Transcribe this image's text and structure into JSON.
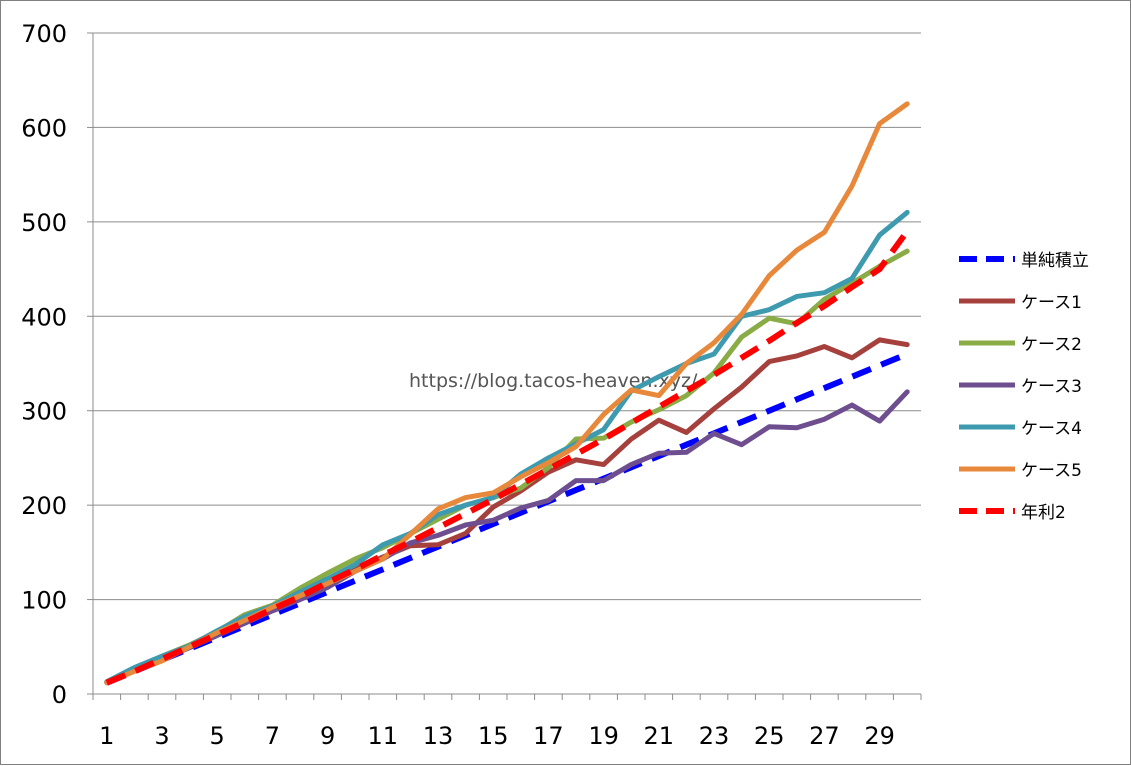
{
  "chart_data": {
    "type": "line",
    "x": [
      1,
      2,
      3,
      4,
      5,
      6,
      7,
      8,
      9,
      10,
      11,
      12,
      13,
      14,
      15,
      16,
      17,
      18,
      19,
      20,
      21,
      22,
      23,
      24,
      25,
      26,
      27,
      28,
      29,
      30
    ],
    "xtick_labels": [
      "1",
      "3",
      "5",
      "7",
      "9",
      "11",
      "13",
      "15",
      "17",
      "19",
      "21",
      "23",
      "25",
      "27",
      "29"
    ],
    "xtick_values": [
      1,
      3,
      5,
      7,
      9,
      11,
      13,
      15,
      17,
      19,
      21,
      23,
      25,
      27,
      29
    ],
    "ylim": [
      0,
      700
    ],
    "yticks": [
      0,
      100,
      200,
      300,
      400,
      500,
      600,
      700
    ],
    "ytick_labels": [
      "0",
      "100",
      "200",
      "300",
      "400",
      "500",
      "600",
      "700"
    ],
    "grid": "horizontal",
    "legend": "right",
    "watermark": "https://blog.tacos-heaven.xyz/",
    "series": [
      {
        "name": "単純積立",
        "color": "#0000ff",
        "dash": true,
        "values": [
          12,
          24,
          36,
          48,
          60,
          72,
          84,
          96,
          108,
          120,
          132,
          144,
          156,
          168,
          180,
          192,
          204,
          216,
          228,
          240,
          252,
          264,
          276,
          288,
          300,
          312,
          324,
          336,
          348,
          360
        ]
      },
      {
        "name": "ケース1",
        "color": "#a5403c",
        "dash": false,
        "values": [
          12,
          26,
          38,
          51,
          63,
          78,
          90,
          105,
          117,
          132,
          145,
          157,
          158,
          170,
          198,
          215,
          235,
          248,
          243,
          270,
          290,
          277,
          302,
          325,
          352,
          358,
          368,
          356,
          375,
          370
        ]
      },
      {
        "name": "ケース2",
        "color": "#8aac46",
        "dash": false,
        "values": [
          13,
          27,
          40,
          52,
          66,
          84,
          94,
          112,
          128,
          143,
          155,
          170,
          185,
          200,
          208,
          218,
          240,
          270,
          271,
          288,
          301,
          316,
          340,
          378,
          398,
          392,
          418,
          435,
          453,
          469
        ]
      },
      {
        "name": "ケース3",
        "color": "#6e4e8e",
        "dash": false,
        "values": [
          12,
          25,
          37,
          49,
          62,
          75,
          88,
          100,
          113,
          130,
          143,
          160,
          168,
          179,
          184,
          197,
          205,
          226,
          226,
          243,
          255,
          256,
          276,
          264,
          283,
          282,
          291,
          306,
          289,
          320
        ]
      },
      {
        "name": "ケース4",
        "color": "#3d9aaf",
        "dash": false,
        "values": [
          13,
          28,
          40,
          51,
          67,
          82,
          93,
          108,
          122,
          137,
          158,
          170,
          190,
          200,
          208,
          233,
          250,
          265,
          280,
          321,
          336,
          350,
          360,
          400,
          407,
          421,
          425,
          440,
          486,
          510
        ]
      },
      {
        "name": "ケース5",
        "color": "#e7883a",
        "dash": false,
        "values": [
          12,
          24,
          35,
          50,
          65,
          78,
          92,
          104,
          117,
          130,
          143,
          169,
          196,
          208,
          213,
          230,
          245,
          262,
          296,
          322,
          316,
          350,
          372,
          402,
          443,
          470,
          489,
          538,
          604,
          625
        ]
      },
      {
        "name": "年利2",
        "color": "#ff0000",
        "dash": true,
        "values": [
          12,
          24,
          37,
          50,
          63,
          76,
          90,
          103,
          118,
          132,
          147,
          161,
          176,
          191,
          206,
          222,
          238,
          254,
          270,
          287,
          304,
          321,
          338,
          356,
          374,
          393,
          411,
          431,
          450,
          490
        ]
      }
    ]
  }
}
